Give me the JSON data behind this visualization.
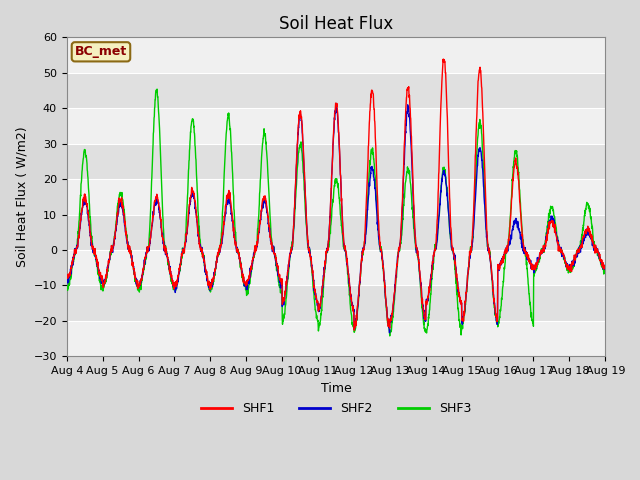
{
  "title": "Soil Heat Flux",
  "ylabel": "Soil Heat Flux ( W/m2)",
  "xlabel": "Time",
  "ylim": [
    -30,
    60
  ],
  "yticks": [
    -30,
    -20,
    -10,
    0,
    10,
    20,
    30,
    40,
    50,
    60
  ],
  "xtick_labels": [
    "Aug 4",
    "Aug 5",
    "Aug 6",
    "Aug 7",
    "Aug 8",
    "Aug 9",
    "Aug 10",
    "Aug 11",
    "Aug 12",
    "Aug 13",
    "Aug 14",
    "Aug 15",
    "Aug 16",
    "Aug 17",
    "Aug 18",
    "Aug 19"
  ],
  "legend_label": "BC_met",
  "line_colors": {
    "SHF1": "#ff0000",
    "SHF2": "#0000cc",
    "SHF3": "#00cc00"
  },
  "line_width": 1.0,
  "bg_color": "#d8d8d8",
  "plot_bg_light": "#f0f0f0",
  "plot_bg_dark": "#e0e0e0",
  "title_fontsize": 12,
  "axis_fontsize": 9,
  "tick_fontsize": 8,
  "legend_fontsize": 9,
  "figsize": [
    6.4,
    4.8
  ],
  "dpi": 100,
  "n_days": 15,
  "pts_per_day": 144,
  "shf1_peaks": [
    15,
    14,
    15,
    17,
    16,
    15,
    39,
    41,
    45,
    46,
    54,
    51,
    25,
    8,
    6
  ],
  "shf2_peaks": [
    14,
    13,
    14,
    16,
    14,
    14,
    38,
    40,
    23,
    40,
    22,
    29,
    8,
    9,
    5
  ],
  "shf3_peaks": [
    28,
    16,
    45,
    37,
    38,
    33,
    30,
    20,
    28,
    23,
    23,
    36,
    28,
    12,
    13
  ],
  "shf1_troughs": [
    -8,
    -10,
    -10,
    -10,
    -10,
    -9,
    -15,
    -17,
    -22,
    -20,
    -15,
    -20,
    -5,
    -5,
    -5
  ],
  "shf2_troughs": [
    -9,
    -10,
    -10,
    -11,
    -10,
    -10,
    -15,
    -17,
    -22,
    -20,
    -15,
    -20,
    -5,
    -5,
    -5
  ],
  "shf3_troughs": [
    -11,
    -11,
    -11,
    -11,
    -11,
    -12,
    -20,
    -22,
    -23,
    -23,
    -23,
    -21,
    -21,
    -6,
    -6
  ]
}
